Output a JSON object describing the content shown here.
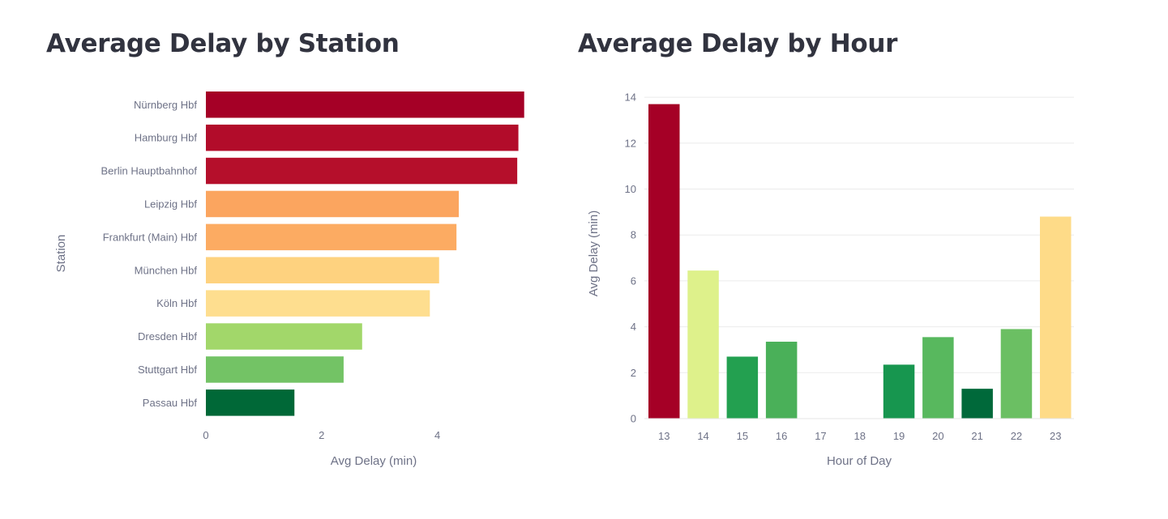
{
  "chart_data": [
    {
      "type": "bar",
      "orientation": "horizontal",
      "title": "Average Delay by Station",
      "xlabel": "Avg Delay (min)",
      "ylabel": "Station",
      "xlim": [
        0,
        5.6
      ],
      "xticks": [
        0,
        2,
        4
      ],
      "grid": false,
      "categories": [
        "Nürnberg Hbf",
        "Hamburg Hbf",
        "Berlin Hauptbahnhof",
        "Leipzig Hbf",
        "Frankfurt (Main) Hbf",
        "München Hbf",
        "Köln Hbf",
        "Dresden Hbf",
        "Stuttgart Hbf",
        "Passau Hbf"
      ],
      "values": [
        5.5,
        5.4,
        5.38,
        4.37,
        4.33,
        4.03,
        3.87,
        2.7,
        2.38,
        1.53
      ],
      "colors": [
        "#a50026",
        "#b20c2a",
        "#b50f2b",
        "#fba55f",
        "#fcab62",
        "#fed27f",
        "#fede8f",
        "#a2d76a",
        "#73c365",
        "#006837"
      ]
    },
    {
      "type": "bar",
      "orientation": "vertical",
      "title": "Average Delay by Hour",
      "xlabel": "Hour of Day",
      "ylabel": "Avg Delay (min)",
      "ylim": [
        0,
        14
      ],
      "yticks": [
        0,
        2,
        4,
        6,
        8,
        10,
        12,
        14
      ],
      "grid": true,
      "categories": [
        "13",
        "14",
        "15",
        "16",
        "17",
        "18",
        "19",
        "20",
        "21",
        "22",
        "23"
      ],
      "values": [
        13.7,
        6.45,
        2.7,
        3.35,
        0,
        0,
        2.35,
        3.55,
        1.3,
        3.9,
        8.8
      ],
      "colors": [
        "#a50026",
        "#def18b",
        "#23a050",
        "#4ab059",
        "#ffffff",
        "#ffffff",
        "#17964f",
        "#58b85e",
        "#00693a",
        "#6bbf63",
        "#fedb88"
      ]
    }
  ]
}
